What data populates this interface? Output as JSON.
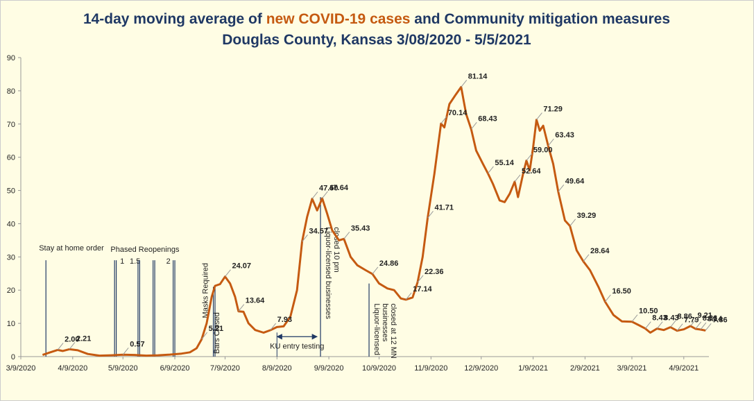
{
  "chart_data": {
    "type": "line",
    "title": [
      "14-day moving average of ",
      "new COVID-19 cases",
      " and Community mitigation measures"
    ],
    "subtitle": "Douglas County, Kansas 3/08/2020 - 5/5/2021",
    "color": "#c55a11",
    "x": [
      "3/22/2020",
      "3/26/2020",
      "3/31/2020",
      "4/3/2020",
      "4/7/2020",
      "4/12/2020",
      "4/18/2020",
      "4/25/2020",
      "5/2/2020",
      "5/9/2020",
      "5/16/2020",
      "5/23/2020",
      "5/30/2020",
      "6/6/2020",
      "6/13/2020",
      "6/18/2020",
      "6/22/2020",
      "6/25/2020",
      "6/28/2020",
      "7/1/2020",
      "7/3/2020",
      "7/6/2020",
      "7/9/2020",
      "7/12/2020",
      "7/15/2020",
      "7/17/2020",
      "7/20/2020",
      "7/23/2020",
      "7/27/2020",
      "8/1/2020",
      "8/5/2020",
      "8/9/2020",
      "8/13/2020",
      "8/17/2020",
      "8/21/2020",
      "8/24/2020",
      "8/27/2020",
      "8/30/2020",
      "9/2/2020",
      "9/5/2020",
      "9/8/2020",
      "9/11/2020",
      "9/15/2020",
      "9/18/2020",
      "9/22/2020",
      "9/26/2020",
      "10/1/2020",
      "10/5/2020",
      "10/9/2020",
      "10/14/2020",
      "10/18/2020",
      "10/22/2020",
      "10/25/2020",
      "10/29/2020",
      "11/1/2020",
      "11/4/2020",
      "11/7/2020",
      "11/11/2020",
      "11/15/2020",
      "11/17/2020",
      "11/20/2020",
      "11/24/2020",
      "11/27/2020",
      "11/30/2020",
      "12/3/2020",
      "12/6/2020",
      "12/10/2020",
      "12/13/2020",
      "12/16/2020",
      "12/20/2020",
      "12/23/2020",
      "12/26/2020",
      "12/29/2020",
      "12/31/2020",
      "1/3/2021",
      "1/5/2021",
      "1/7/2021",
      "1/9/2021",
      "1/11/2021",
      "1/13/2021",
      "1/15/2021",
      "1/18/2021",
      "1/21/2021",
      "1/24/2021",
      "1/28/2021",
      "1/31/2021",
      "2/4/2021",
      "2/8/2021",
      "2/12/2021",
      "2/17/2021",
      "2/21/2021",
      "2/26/2021",
      "3/3/2021",
      "3/9/2021",
      "3/13/2021",
      "3/17/2021",
      "3/20/2021",
      "3/24/2021",
      "3/28/2021",
      "4/1/2021",
      "4/5/2021",
      "4/9/2021",
      "4/13/2021",
      "4/16/2021",
      "4/19/2021",
      "4/22/2021"
    ],
    "values": [
      0.5,
      1.2,
      2.0,
      1.7,
      2.21,
      1.9,
      0.8,
      0.3,
      0.4,
      0.57,
      0.5,
      0.3,
      0.4,
      0.6,
      0.9,
      1.3,
      2.5,
      5.21,
      10,
      18,
      21.3,
      21.8,
      24.07,
      22,
      18,
      13.64,
      13.5,
      10,
      8,
      7.2,
      7.93,
      8.9,
      9.1,
      12,
      20,
      34.57,
      42,
      47.5,
      44,
      47.64,
      43,
      38,
      35,
      35.43,
      30,
      27.5,
      26,
      24.86,
      22,
      20.5,
      20,
      17.5,
      17.14,
      17.8,
      22.36,
      30,
      41.71,
      55,
      70.14,
      69,
      76,
      79,
      81.14,
      73,
      68.43,
      62,
      58,
      55.14,
      52,
      47,
      46.5,
      49,
      52.64,
      48,
      55,
      59.0,
      56,
      63,
      71.29,
      68,
      69.5,
      63.43,
      58,
      49.64,
      41,
      39.29,
      32,
      28.64,
      26,
      21,
      16.5,
      12.5,
      10.6,
      10.5,
      9.5,
      8.43,
      7.2,
      8.43,
      8.0,
      8.86,
      7.79,
      8.2,
      9.21,
      8.36,
      8.14,
      7.86
    ],
    "value_labels": [
      null,
      null,
      "2.00",
      null,
      "2.21",
      null,
      null,
      null,
      null,
      "0.57",
      null,
      null,
      null,
      null,
      null,
      null,
      null,
      "5.21",
      null,
      null,
      null,
      null,
      "24.07",
      null,
      null,
      "13.64",
      null,
      null,
      null,
      null,
      "7.93",
      null,
      null,
      null,
      null,
      "34.57",
      null,
      "47.50",
      null,
      "47.64",
      null,
      null,
      null,
      "35.43",
      null,
      null,
      null,
      "24.86",
      null,
      null,
      null,
      null,
      "17.14",
      null,
      "22.36",
      null,
      "41.71",
      null,
      "70.14",
      null,
      null,
      null,
      "81.14",
      null,
      "68.43",
      null,
      null,
      "55.14",
      null,
      null,
      null,
      null,
      "52.64",
      null,
      null,
      "59.00",
      null,
      null,
      "71.29",
      null,
      null,
      "63.43",
      null,
      "49.64",
      null,
      "39.29",
      null,
      "28.64",
      null,
      null,
      "16.50",
      null,
      null,
      "10.50",
      null,
      "8.43",
      null,
      "8.43",
      null,
      "8.86",
      "7.79",
      null,
      "9.21",
      "8.36",
      "8.14",
      "7.86"
    ],
    "xlim": [
      "3/9/2020",
      "4/24/2021"
    ],
    "xticks": [
      "3/9/2020",
      "4/9/2020",
      "5/9/2020",
      "6/9/2020",
      "7/9/2020",
      "8/9/2020",
      "9/9/2020",
      "10/9/2020",
      "11/9/2020",
      "12/9/2020",
      "1/9/2021",
      "2/9/2021",
      "3/9/2021",
      "4/9/2021"
    ],
    "ylim": [
      0,
      90
    ],
    "yticks": [
      0,
      10,
      20,
      30,
      40,
      50,
      60,
      70,
      80,
      90
    ],
    "phased_label": "Phased  Reopenings",
    "events": [
      {
        "date": "3/24/2020",
        "label": "Stay at home  order"
      },
      {
        "date": "5/4/2020",
        "label": "1"
      },
      {
        "date": "5/5/2020"
      },
      {
        "date": "5/18/2020",
        "label": "1.5"
      },
      {
        "date": "5/19/2020"
      },
      {
        "date": "5/27/2020"
      },
      {
        "date": "5/28/2020"
      },
      {
        "date": "6/8/2020",
        "label": "2"
      },
      {
        "date": "6/9/2020"
      },
      {
        "date": "7/2/2020",
        "label": "Masks Required"
      },
      {
        "date": "7/3/2020",
        "label": "Bars Closed"
      },
      {
        "date": "9/4/2020",
        "label": [
          "Liquor-licensed businesses",
          "closed 10 pm"
        ]
      },
      {
        "date": "10/3/2020",
        "label": [
          "Liquor-licensed",
          "businesses",
          "closed at 12 MN"
        ]
      }
    ],
    "ku_testing": {
      "start": "8/9/2020",
      "end": "9/2/2020",
      "label": "KU entry testing"
    }
  }
}
